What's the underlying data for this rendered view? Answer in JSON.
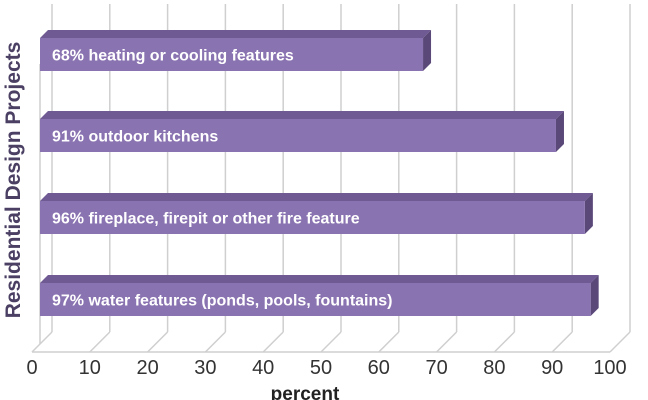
{
  "chart_data": {
    "type": "bar",
    "orientation": "horizontal",
    "style": "3d",
    "categories": [
      "heating or cooling features",
      "outdoor kitchens",
      "fireplace, firepit or other fire feature",
      "water features (ponds, pools, fountains)"
    ],
    "values": [
      68,
      91,
      96,
      97
    ],
    "bar_labels": [
      "68% heating or cooling features",
      "91% outdoor kitchens",
      "96% fireplace, firepit or other fire feature",
      "97% water features (ponds, pools, fountains)"
    ],
    "xlabel": "percent",
    "ylabel": "Residential Design Projects",
    "xlim": [
      0,
      100
    ],
    "xticks": [
      "0",
      "10",
      "20",
      "30",
      "40",
      "50",
      "60",
      "70",
      "80",
      "90",
      "100"
    ],
    "grid": true,
    "colors": {
      "bar": "#8a73b1",
      "bar_top": "#6f5a93",
      "bar_side": "#5a4879",
      "grid": "#cfcfcf"
    }
  }
}
